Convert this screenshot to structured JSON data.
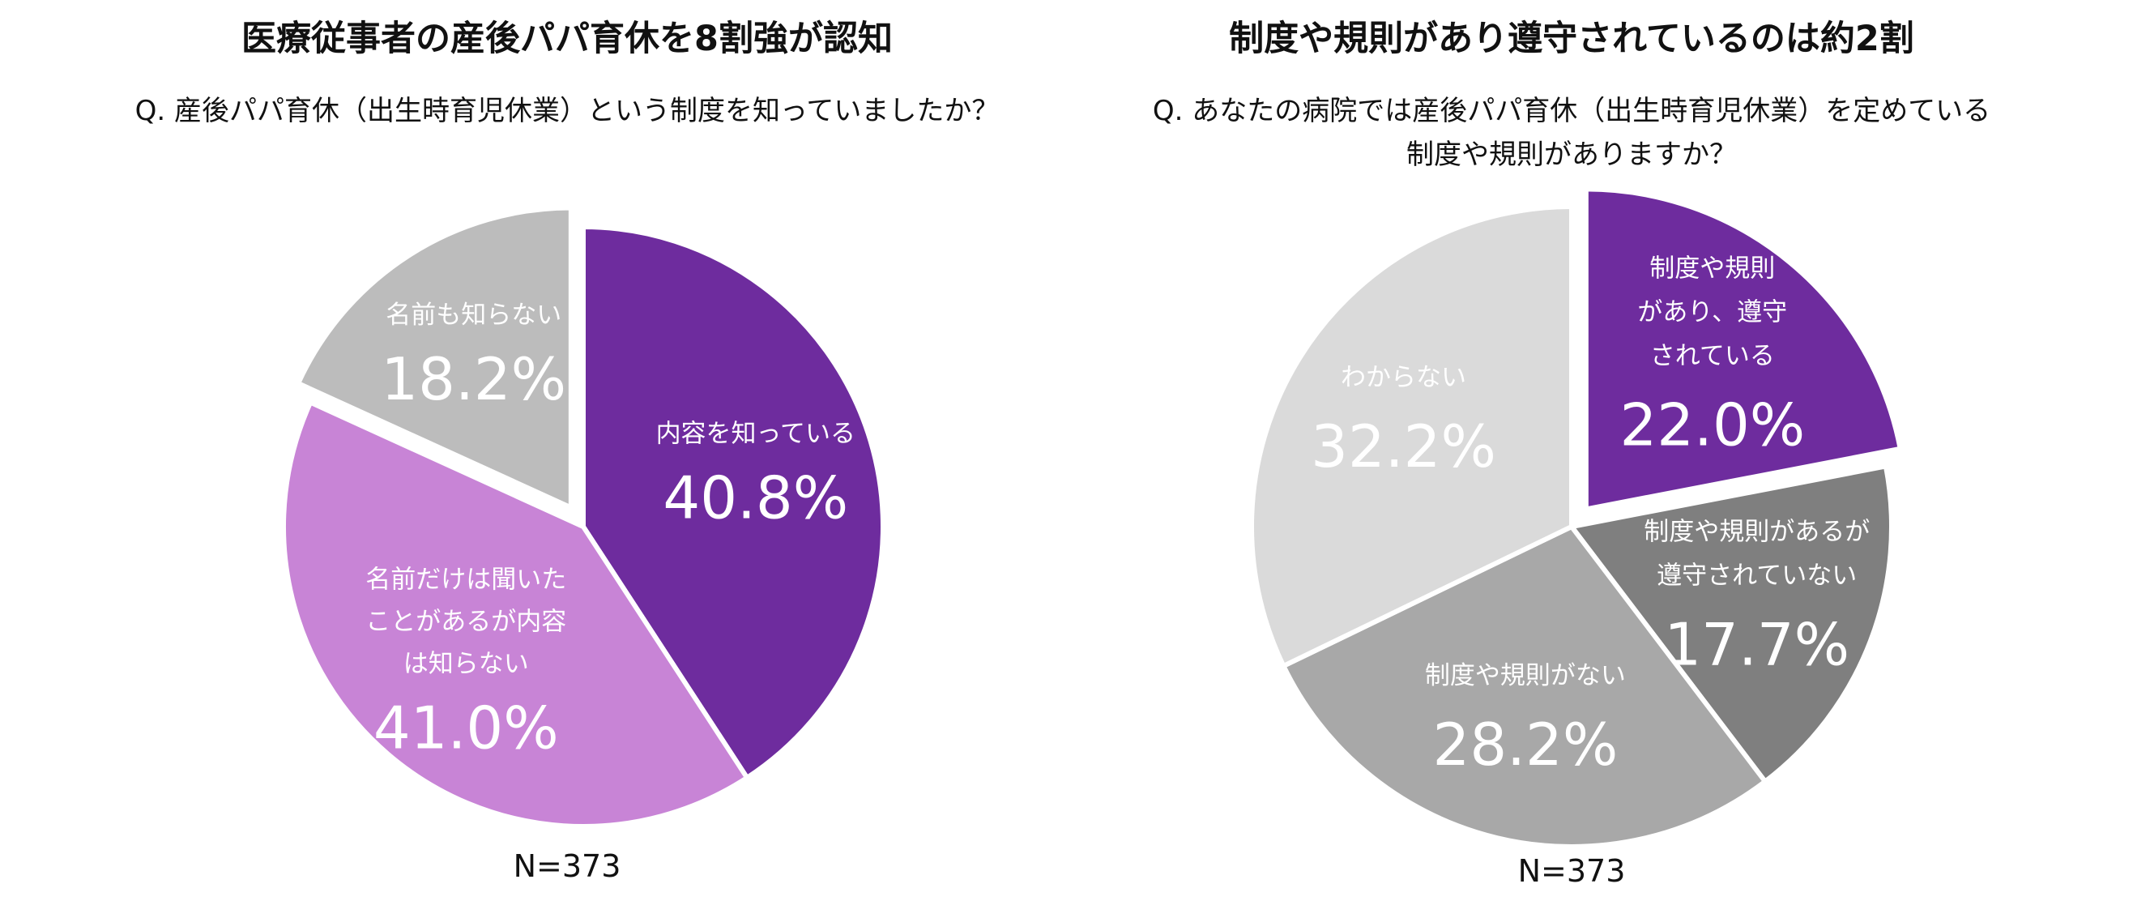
{
  "chart_data": [
    {
      "type": "pie",
      "title": "医療従事者の産後パパ育休を8割強が認知",
      "question": [
        "Q. 産後パパ育休（出生時育児休業）という制度を知っていましたか？"
      ],
      "n_label": "N=373",
      "slices": [
        {
          "label_lines": [
            "内容を知っている"
          ],
          "value": 40.8,
          "value_label": "40.8%",
          "color": "#6e2c9e"
        },
        {
          "label_lines": [
            "名前だけは聞いた",
            "ことがあるが内容",
            "は知らない"
          ],
          "value": 41.0,
          "value_label": "41.0%",
          "color": "#c884d6"
        },
        {
          "label_lines": [
            "名前も知らない"
          ],
          "value": 18.2,
          "value_label": "18.2%",
          "color": "#bcbcbc",
          "exploded": true
        }
      ]
    },
    {
      "type": "pie",
      "title": "制度や規則があり遵守されているのは約2割",
      "question": [
        "Q. あなたの病院では産後パパ育休（出生時育児休業）を定めている",
        "制度や規則がありますか？"
      ],
      "n_label": "N=373",
      "slices": [
        {
          "label_lines": [
            "制度や規則",
            "があり、遵守",
            "されている"
          ],
          "value": 22.0,
          "value_label": "22.0%",
          "color": "#6e2c9e",
          "exploded": true
        },
        {
          "label_lines": [
            "制度や規則があるが",
            "遵守されていない"
          ],
          "value": 17.7,
          "value_label": "17.7%",
          "color": "#7f7f7f"
        },
        {
          "label_lines": [
            "制度や規則がない"
          ],
          "value": 28.2,
          "value_label": "28.2%",
          "color": "#a8a8a8"
        },
        {
          "label_lines": [
            "わからない"
          ],
          "value": 32.2,
          "value_label": "32.2%",
          "color": "#dadada"
        }
      ]
    }
  ]
}
